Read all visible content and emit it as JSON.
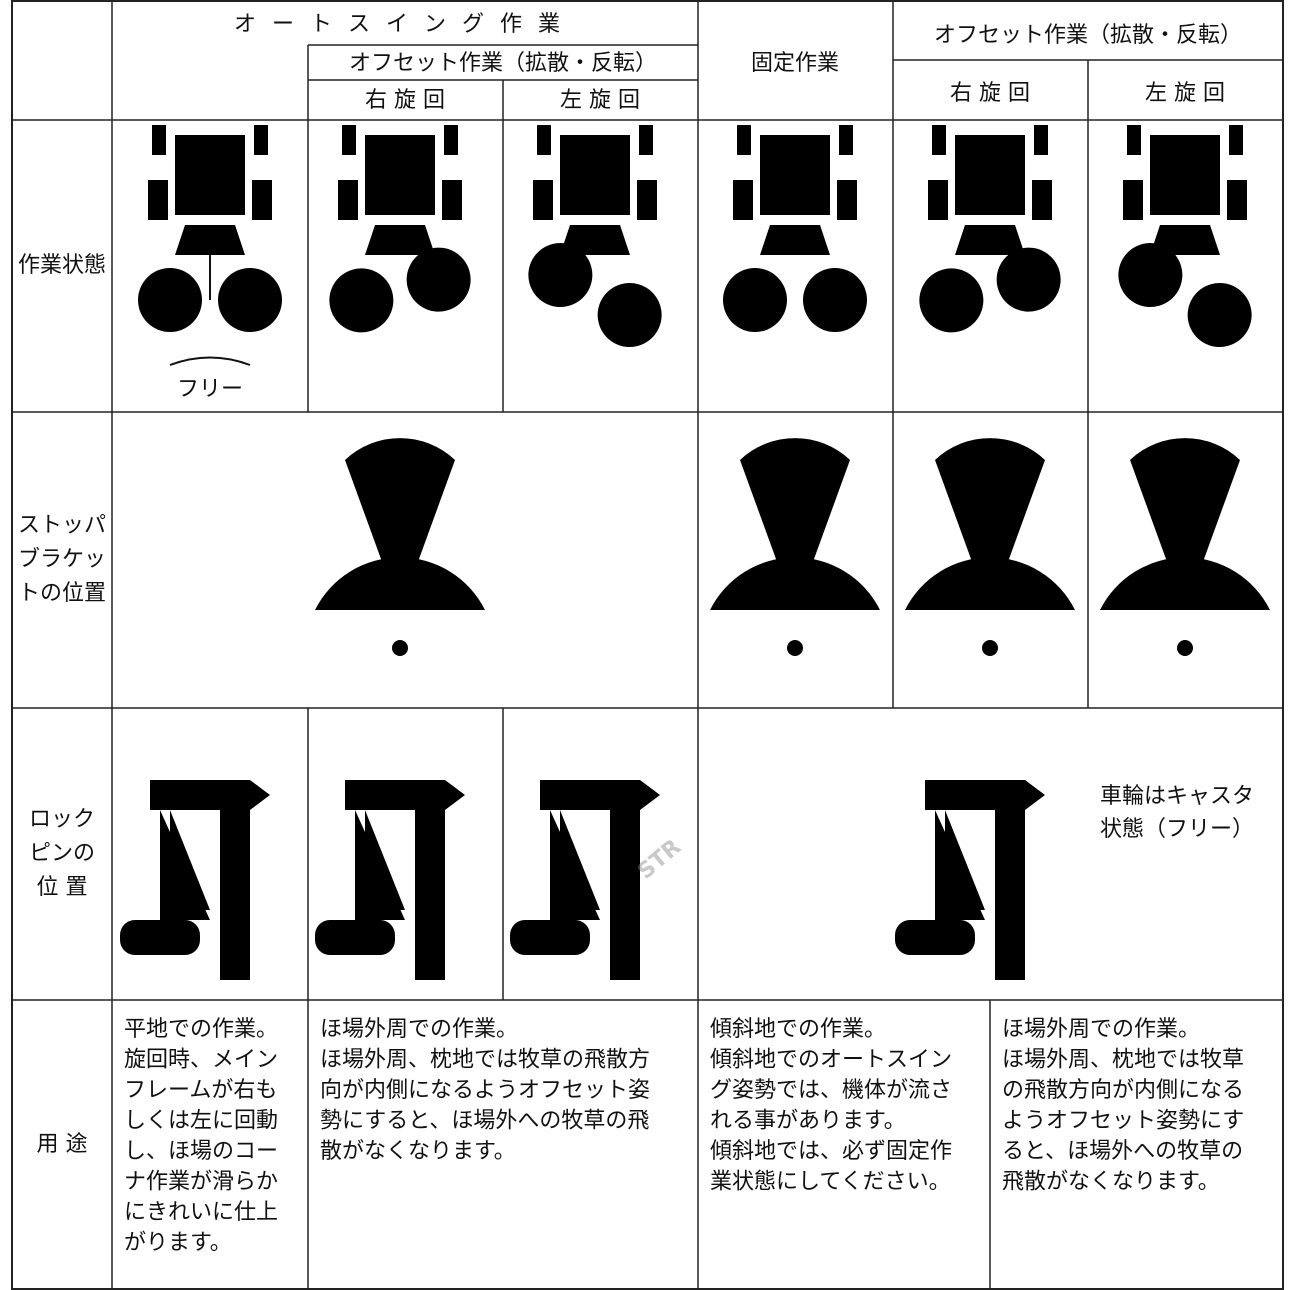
{
  "header": {
    "auto_swing": "オートスイング作業",
    "offset_left": "オフセット作業（拡散・反転）",
    "right_turn_1": "右 旋 回",
    "left_turn_1": "左 旋 回",
    "fixed": "固定作業",
    "offset_right": "オフセット作業（拡散・反転）",
    "right_turn_2": "右 旋 回",
    "left_turn_2": "左 旋 回"
  },
  "row_labels": [
    [
      "作業状態"
    ],
    [
      "ストッパ",
      "ブラケッ",
      "トの位置"
    ],
    [
      "ロック",
      "ピンの",
      "位 置"
    ],
    [
      "用 途"
    ]
  ],
  "free_label": "フリー",
  "caster_note": [
    "車輪はキャスタ",
    "状態（フリー）"
  ],
  "usage": [
    [
      "平地での作業。",
      "旋回時、メイン",
      "フレームが右も",
      "しくは左に回動",
      "し、ほ場のコー",
      "ナ作業が滑らか",
      "にきれいに仕上",
      "がります。"
    ],
    [
      "ほ場外周での作業。",
      "ほ場外周、枕地では牧草の飛散方",
      "向が内側になるようオフセット姿",
      "勢にすると、ほ場外への牧草の飛",
      "散がなくなります。"
    ],
    [
      "傾斜地での作業。",
      "傾斜地でのオートスイン",
      "グ姿勢では、機体が流さ",
      "れる事があります。",
      "傾斜地では、必ず固定作",
      "業状態にしてください。"
    ],
    [
      "ほ場外周での作業。",
      "ほ場外周、枕地では牧草",
      "の飛散方向が内側になる",
      "ようオフセット姿勢にす",
      "ると、ほ場外への牧草の",
      "飛散がなくなります。"
    ]
  ],
  "watermark": "STR"
}
